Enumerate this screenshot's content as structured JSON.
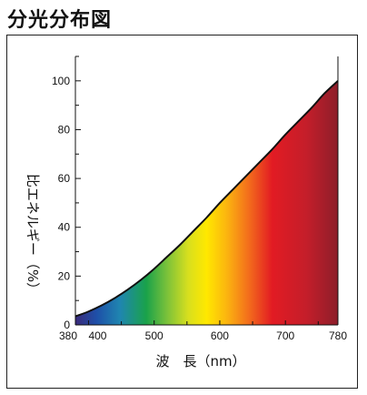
{
  "header": {
    "title": "分光分布図"
  },
  "chart_data": {
    "type": "area",
    "title": "",
    "xlabel": "波　長（nm）",
    "ylabel": "比エネルギー（%）",
    "xlim": [
      380,
      780
    ],
    "ylim": [
      0,
      110
    ],
    "grid": false,
    "x_ticks": [
      380,
      400,
      500,
      600,
      700,
      780
    ],
    "x_tick_labels": [
      "380",
      "400",
      "500",
      "600",
      "700",
      "780"
    ],
    "y_ticks": [
      0,
      20,
      40,
      60,
      80,
      100
    ],
    "y_tick_labels": [
      "0",
      "20",
      "40",
      "60",
      "80",
      "100"
    ],
    "series": [
      {
        "x": [
          380,
          400,
          420,
          440,
          460,
          480,
          500,
          520,
          540,
          560,
          580,
          600,
          620,
          640,
          660,
          680,
          700,
          720,
          740,
          760,
          780
        ],
        "values": [
          3.5,
          5.5,
          8,
          11,
          14.5,
          18.5,
          23,
          28,
          33,
          38.5,
          44,
          50,
          55.5,
          61,
          66.5,
          72,
          78,
          83.5,
          89,
          95,
          100
        ]
      }
    ],
    "fill_gradient": "spectrum (violet-blue → green → yellow → orange → red → dark red)"
  }
}
